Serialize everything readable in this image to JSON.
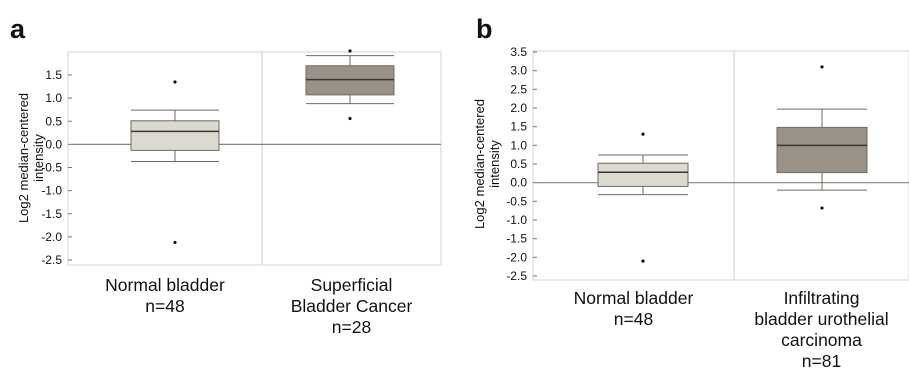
{
  "chart_data": [
    {
      "type": "box",
      "panel_label": "a",
      "ylabel": [
        "Log2 median-centered",
        "intensity"
      ],
      "yticks": [
        1.5,
        1.0,
        0.5,
        0.0,
        -0.5,
        -1.0,
        -1.5,
        -2.0,
        -2.5
      ],
      "ytick_labels": [
        "1.5",
        "1.0",
        "0.5",
        "0.0",
        "-0.5",
        "-1.0",
        "-1.5",
        "-2.0",
        "-2.5"
      ],
      "ylim": [
        -2.55,
        2.05
      ],
      "baseline": 0,
      "grid": false,
      "categories": [
        {
          "label_lines": [
            "Normal bladder",
            "n=48"
          ],
          "n": 48,
          "box": {
            "whislo": -0.37,
            "q1": -0.13,
            "median": 0.28,
            "q3": 0.51,
            "whishi": 0.74
          },
          "outliers": [
            1.35,
            -2.12
          ],
          "color": "#dcd9d0"
        },
        {
          "label_lines": [
            "Superficial",
            "Bladder Cancer",
            "n=28"
          ],
          "n": 28,
          "box": {
            "whislo": 0.88,
            "q1": 1.07,
            "median": 1.4,
            "q3": 1.7,
            "whishi": 1.92
          },
          "outliers": [
            2.02,
            0.56
          ],
          "color": "#9b9287"
        }
      ]
    },
    {
      "type": "box",
      "panel_label": "b",
      "ylabel": [
        "Log2 median-centered",
        "intensity"
      ],
      "yticks": [
        3.5,
        3.0,
        2.5,
        2.0,
        1.5,
        1.0,
        0.5,
        0.0,
        -0.5,
        -1.0,
        -1.5,
        -2.0,
        -2.5
      ],
      "ytick_labels": [
        "3.5",
        "3.0",
        "2.5",
        "2.0",
        "1.5",
        "1.0",
        "0.5",
        "0.0",
        "-0.5",
        "-1.0",
        "-1.5",
        "-2.0",
        "-2.5"
      ],
      "ylim": [
        -2.55,
        3.55
      ],
      "baseline": 0,
      "grid": false,
      "categories": [
        {
          "label_lines": [
            "Normal bladder",
            "n=48"
          ],
          "n": 48,
          "box": {
            "whislo": -0.32,
            "q1": -0.1,
            "median": 0.28,
            "q3": 0.52,
            "whishi": 0.74
          },
          "outliers": [
            1.3,
            -2.1
          ],
          "color": "#dcd9d0"
        },
        {
          "label_lines": [
            "Infiltrating",
            "bladder urothelial",
            "carcinoma",
            "n=81"
          ],
          "n": 81,
          "box": {
            "whislo": -0.2,
            "q1": 0.27,
            "median": 1.0,
            "q3": 1.48,
            "whishi": 1.97
          },
          "outliers": [
            3.1,
            -0.68
          ],
          "color": "#9b9287"
        }
      ]
    }
  ]
}
